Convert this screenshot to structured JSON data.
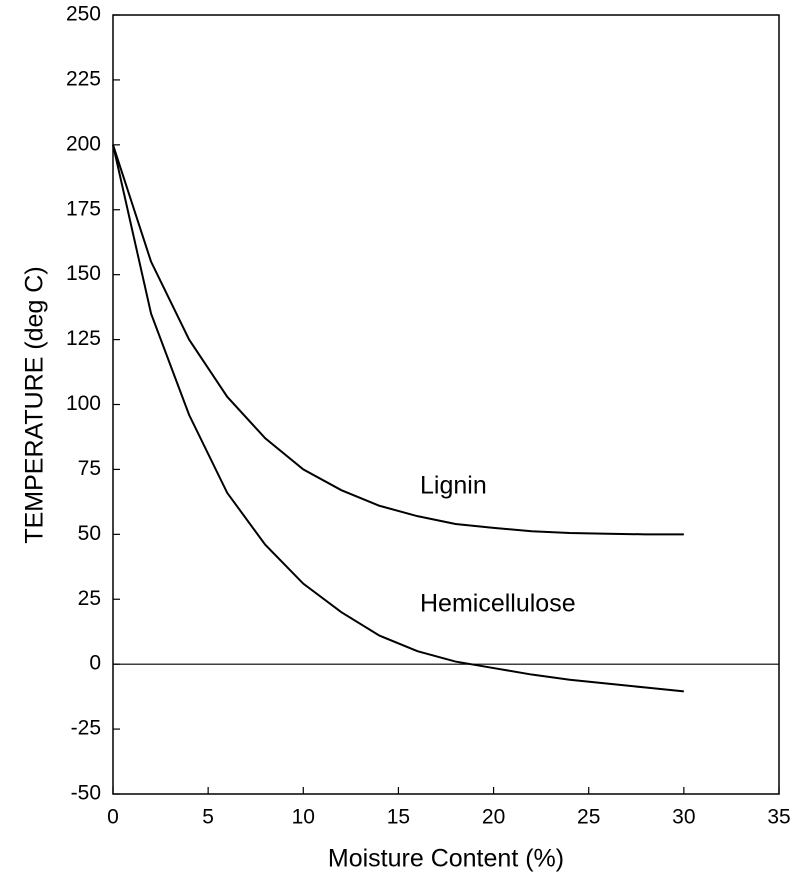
{
  "chart_data": {
    "type": "line",
    "x_label": "Moisture Content (%)",
    "y_label": "TEMPERATURE (deg C)",
    "x": [
      0,
      2,
      4,
      6,
      8,
      10,
      12,
      14,
      16,
      18,
      20,
      22,
      24,
      26,
      28,
      30
    ],
    "series": [
      {
        "name": "Lignin",
        "color": "#000000",
        "values": [
          200,
          155,
          125,
          103,
          87,
          75,
          67,
          61,
          57,
          54,
          52.5,
          51.2,
          50.5,
          50.2,
          50,
          50
        ]
      },
      {
        "name": "Hemicellulose",
        "color": "#000000",
        "values": [
          200,
          135,
          96,
          66,
          46,
          31,
          20,
          11,
          5,
          1,
          -1.5,
          -4,
          -6,
          -7.5,
          -9,
          -10.5
        ]
      }
    ],
    "xlim": [
      0,
      35
    ],
    "xticks": [
      0,
      5,
      10,
      15,
      20,
      25,
      30,
      35
    ],
    "ylim": [
      -50,
      250
    ],
    "yticks": [
      -50,
      -25,
      0,
      25,
      50,
      75,
      100,
      125,
      150,
      175,
      200,
      225,
      250
    ],
    "grid": false,
    "zero_line": true
  }
}
